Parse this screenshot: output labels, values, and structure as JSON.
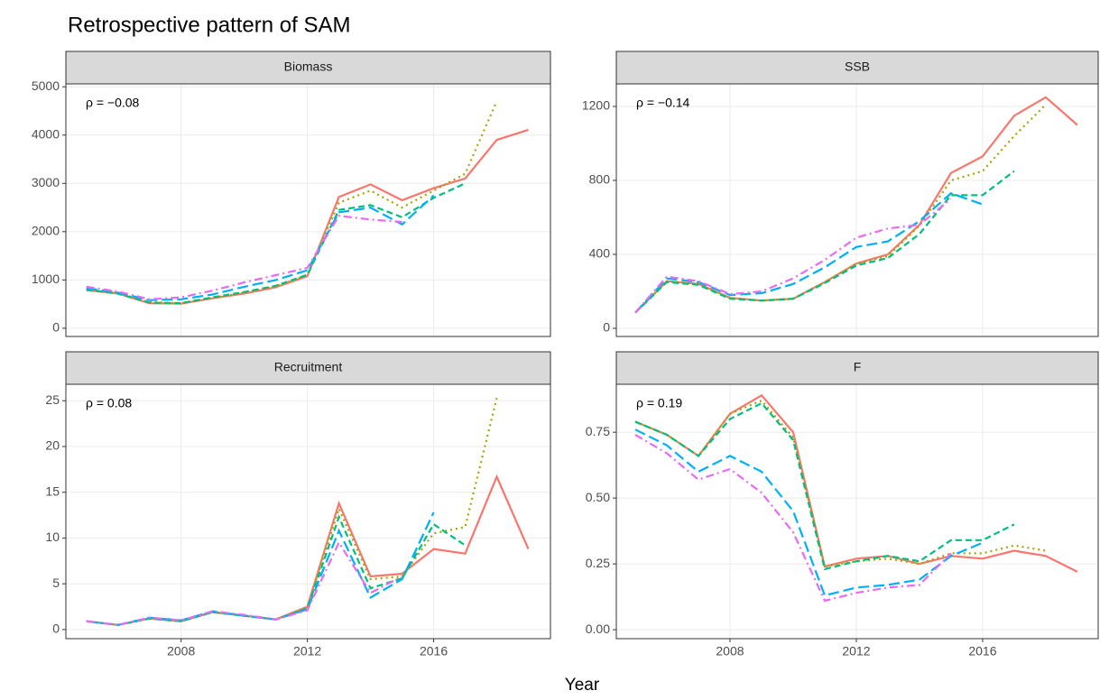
{
  "title": "Retrospective pattern of SAM",
  "xlabel": "Year",
  "chart_data": [
    {
      "type": "line",
      "title": "Biomass",
      "annotation": "ρ = −0.08",
      "x": [
        2005,
        2006,
        2007,
        2008,
        2009,
        2010,
        2011,
        2012,
        2013,
        2014,
        2015,
        2016,
        2017,
        2018,
        2019
      ],
      "xlim": [
        2004.35,
        2019.7
      ],
      "xticks": [
        2008,
        2012,
        2016
      ],
      "ylim": [
        -170,
        5060
      ],
      "yticks": [
        0,
        1000,
        2000,
        3000,
        4000,
        5000
      ],
      "grid": true,
      "series": [
        {
          "color": "#F8766D",
          "dash": "solid",
          "values": [
            790,
            720,
            520,
            510,
            620,
            720,
            850,
            1080,
            2720,
            2980,
            2650,
            2900,
            3100,
            3900,
            4110
          ]
        },
        {
          "color": "#A3A500",
          "dash": "dotted",
          "values": [
            800,
            730,
            540,
            520,
            630,
            740,
            870,
            1100,
            2600,
            2850,
            2500,
            2850,
            3200,
            4700,
            null
          ]
        },
        {
          "color": "#00BF7D",
          "dash": "dashed",
          "values": [
            800,
            720,
            530,
            520,
            640,
            750,
            880,
            1110,
            2450,
            2550,
            2300,
            2700,
            3000,
            null,
            null
          ]
        },
        {
          "color": "#00B0F6",
          "dash": "longdash",
          "values": [
            830,
            740,
            580,
            600,
            700,
            860,
            1000,
            1200,
            2400,
            2500,
            2150,
            2750,
            null,
            null,
            null
          ]
        },
        {
          "color": "#E76BF3",
          "dash": "dotdash",
          "values": [
            860,
            760,
            600,
            640,
            780,
            950,
            1100,
            1250,
            2330,
            2250,
            2200,
            null,
            null,
            null,
            null
          ]
        }
      ]
    },
    {
      "type": "line",
      "title": "SSB",
      "annotation": "ρ = −0.14",
      "x": [
        2005,
        2006,
        2007,
        2008,
        2009,
        2010,
        2011,
        2012,
        2013,
        2014,
        2015,
        2016,
        2017,
        2018,
        2019
      ],
      "xlim": [
        2004.4,
        2019.66
      ],
      "xticks": [
        2008,
        2012,
        2016
      ],
      "ylim": [
        -44,
        1322
      ],
      "yticks": [
        0,
        400,
        800,
        1200
      ],
      "grid": true,
      "series": [
        {
          "color": "#F8766D",
          "dash": "solid",
          "values": [
            85,
            255,
            240,
            165,
            150,
            160,
            250,
            350,
            400,
            560,
            840,
            930,
            1150,
            1250,
            1100
          ]
        },
        {
          "color": "#A3A500",
          "dash": "dotted",
          "values": [
            85,
            255,
            240,
            165,
            150,
            160,
            250,
            350,
            390,
            555,
            800,
            850,
            1040,
            1210,
            null
          ]
        },
        {
          "color": "#00BF7D",
          "dash": "dashed",
          "values": [
            85,
            250,
            235,
            160,
            150,
            160,
            245,
            340,
            380,
            510,
            720,
            720,
            850,
            null,
            null
          ]
        },
        {
          "color": "#00B0F6",
          "dash": "longdash",
          "values": [
            85,
            270,
            250,
            180,
            190,
            240,
            330,
            440,
            470,
            580,
            730,
            670,
            null,
            null,
            null
          ]
        },
        {
          "color": "#E76BF3",
          "dash": "dotdash",
          "values": [
            85,
            280,
            255,
            185,
            200,
            270,
            370,
            490,
            540,
            560,
            700,
            null,
            null,
            null,
            null
          ]
        }
      ]
    },
    {
      "type": "line",
      "title": "Recruitment",
      "annotation": "ρ = 0.08",
      "x": [
        2005,
        2006,
        2007,
        2008,
        2009,
        2010,
        2011,
        2012,
        2013,
        2014,
        2015,
        2016,
        2017,
        2018,
        2019
      ],
      "xlim": [
        2004.35,
        2019.7
      ],
      "xticks": [
        2008,
        2012,
        2016
      ],
      "ylim": [
        -1,
        26.8
      ],
      "yticks": [
        0,
        5,
        10,
        15,
        20,
        25
      ],
      "grid": true,
      "series": [
        {
          "color": "#F8766D",
          "dash": "solid",
          "values": [
            0.9,
            0.5,
            1.2,
            0.9,
            1.9,
            1.5,
            1.1,
            2.5,
            13.8,
            5.8,
            6.1,
            8.8,
            8.3,
            16.7,
            8.8
          ]
        },
        {
          "color": "#A3A500",
          "dash": "dotted",
          "values": [
            0.9,
            0.5,
            1.2,
            0.9,
            1.9,
            1.5,
            1.1,
            2.4,
            13.2,
            5.5,
            5.8,
            10.5,
            11.2,
            25.3,
            null
          ]
        },
        {
          "color": "#00BF7D",
          "dash": "dashed",
          "values": [
            0.9,
            0.5,
            1.2,
            0.9,
            1.9,
            1.5,
            1.1,
            2.3,
            12.3,
            4.5,
            5.6,
            11.5,
            9.2,
            null,
            null
          ]
        },
        {
          "color": "#00B0F6",
          "dash": "longdash",
          "values": [
            0.9,
            0.5,
            1.3,
            1.0,
            2.0,
            1.5,
            1.1,
            2.2,
            10.8,
            3.5,
            5.5,
            12.8,
            null,
            null,
            null
          ]
        },
        {
          "color": "#E76BF3",
          "dash": "dotdash",
          "values": [
            0.9,
            0.5,
            1.3,
            1.0,
            2.0,
            1.6,
            1.1,
            2.1,
            9.5,
            4.0,
            5.8,
            null,
            null,
            null,
            null
          ]
        }
      ]
    },
    {
      "type": "line",
      "title": "F",
      "annotation": "ρ = 0.19",
      "x": [
        2005,
        2006,
        2007,
        2008,
        2009,
        2010,
        2011,
        2012,
        2013,
        2014,
        2015,
        2016,
        2017,
        2018,
        2019
      ],
      "xlim": [
        2004.4,
        2019.66
      ],
      "xticks": [
        2008,
        2012,
        2016
      ],
      "ylim": [
        -0.034,
        0.932
      ],
      "yticks": [
        {
          "value": 0,
          "label": "0.00"
        },
        {
          "value": 0.25,
          "label": "0.25"
        },
        {
          "value": 0.5,
          "label": "0.50"
        },
        {
          "value": 0.75,
          "label": "0.75"
        }
      ],
      "grid": true,
      "series": [
        {
          "color": "#F8766D",
          "dash": "solid",
          "values": [
            0.79,
            0.74,
            0.66,
            0.82,
            0.89,
            0.75,
            0.24,
            0.27,
            0.28,
            0.25,
            0.28,
            0.27,
            0.3,
            0.28,
            0.22
          ]
        },
        {
          "color": "#A3A500",
          "dash": "dotted",
          "values": [
            0.79,
            0.74,
            0.66,
            0.82,
            0.87,
            0.73,
            0.24,
            0.26,
            0.27,
            0.25,
            0.29,
            0.29,
            0.32,
            0.3,
            null
          ]
        },
        {
          "color": "#00BF7D",
          "dash": "dashed",
          "values": [
            0.79,
            0.74,
            0.66,
            0.8,
            0.86,
            0.72,
            0.23,
            0.26,
            0.28,
            0.26,
            0.34,
            0.34,
            0.4,
            null,
            null
          ]
        },
        {
          "color": "#00B0F6",
          "dash": "longdash",
          "values": [
            0.76,
            0.7,
            0.6,
            0.66,
            0.6,
            0.45,
            0.13,
            0.16,
            0.17,
            0.19,
            0.28,
            0.33,
            null,
            null,
            null
          ]
        },
        {
          "color": "#E76BF3",
          "dash": "dotdash",
          "values": [
            0.74,
            0.67,
            0.57,
            0.61,
            0.52,
            0.37,
            0.11,
            0.14,
            0.16,
            0.17,
            0.29,
            null,
            null,
            null,
            null
          ]
        }
      ]
    }
  ]
}
